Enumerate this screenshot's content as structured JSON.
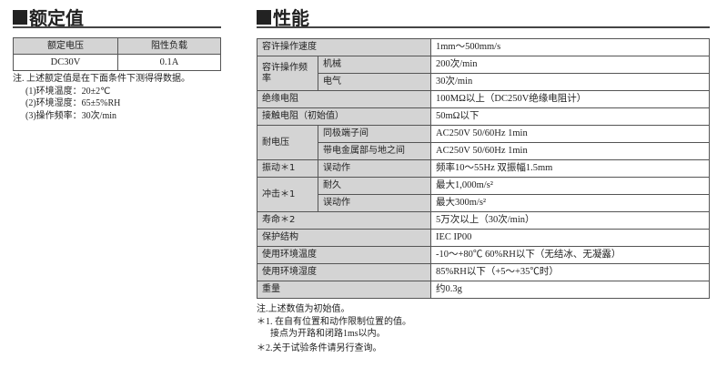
{
  "rated": {
    "title": "额定值",
    "headers": [
      "额定电压",
      "阻性负载"
    ],
    "row": [
      "DC30V",
      "0.1A"
    ],
    "notes": [
      "注. 上述额定值是在下面条件下测得得数据。",
      "(1)环境温度：20±2℃",
      "(2)环境湿度：65±5%RH",
      "(3)操作频率：30次/min"
    ]
  },
  "perf": {
    "title": "性能",
    "rows": [
      {
        "label": "容许操作速度",
        "value": "1mm～500mm/s"
      },
      {
        "label": "容许操作频率",
        "sub": "机械",
        "value": "200次/min"
      },
      {
        "sub": "电气",
        "value": "30次/min"
      },
      {
        "label": "绝缘电阻",
        "value": "100MΩ以上（DC250V绝缘电阻计）"
      },
      {
        "label": "接触电阻（初始值）",
        "value": "50mΩ以下"
      },
      {
        "label": "耐电压",
        "sub": "同极端子间",
        "value": "AC250V 50/60Hz 1min"
      },
      {
        "sub": "带电金属部与地之间",
        "value": "AC250V 50/60Hz 1min"
      },
      {
        "label": "振动＊1",
        "sub": "误动作",
        "value": "频率10～55Hz 双振幅1.5mm"
      },
      {
        "label": "冲击＊1",
        "sub": "耐久",
        "value": "最大1,000m/s²"
      },
      {
        "sub": "误动作",
        "value": "最大300m/s²"
      },
      {
        "label": "寿命＊2",
        "value": "5万次以上（30次/min）"
      },
      {
        "label": "保护结构",
        "value": "IEC IP00"
      },
      {
        "label": "使用环境温度",
        "value": "-10～+80℃ 60%RH以下（无结冰、无凝露）"
      },
      {
        "label": "使用环境湿度",
        "value": "85%RH以下（+5～+35℃时）"
      },
      {
        "label": "重量",
        "value": "约0.3g"
      }
    ],
    "notes": [
      "注.上述数值为初始值。",
      "＊1. 在自有位置和动作限制位置的值。",
      "      接点为开路和闭路1ms以内。",
      "＊2.关于试验条件请另行查询。"
    ]
  }
}
